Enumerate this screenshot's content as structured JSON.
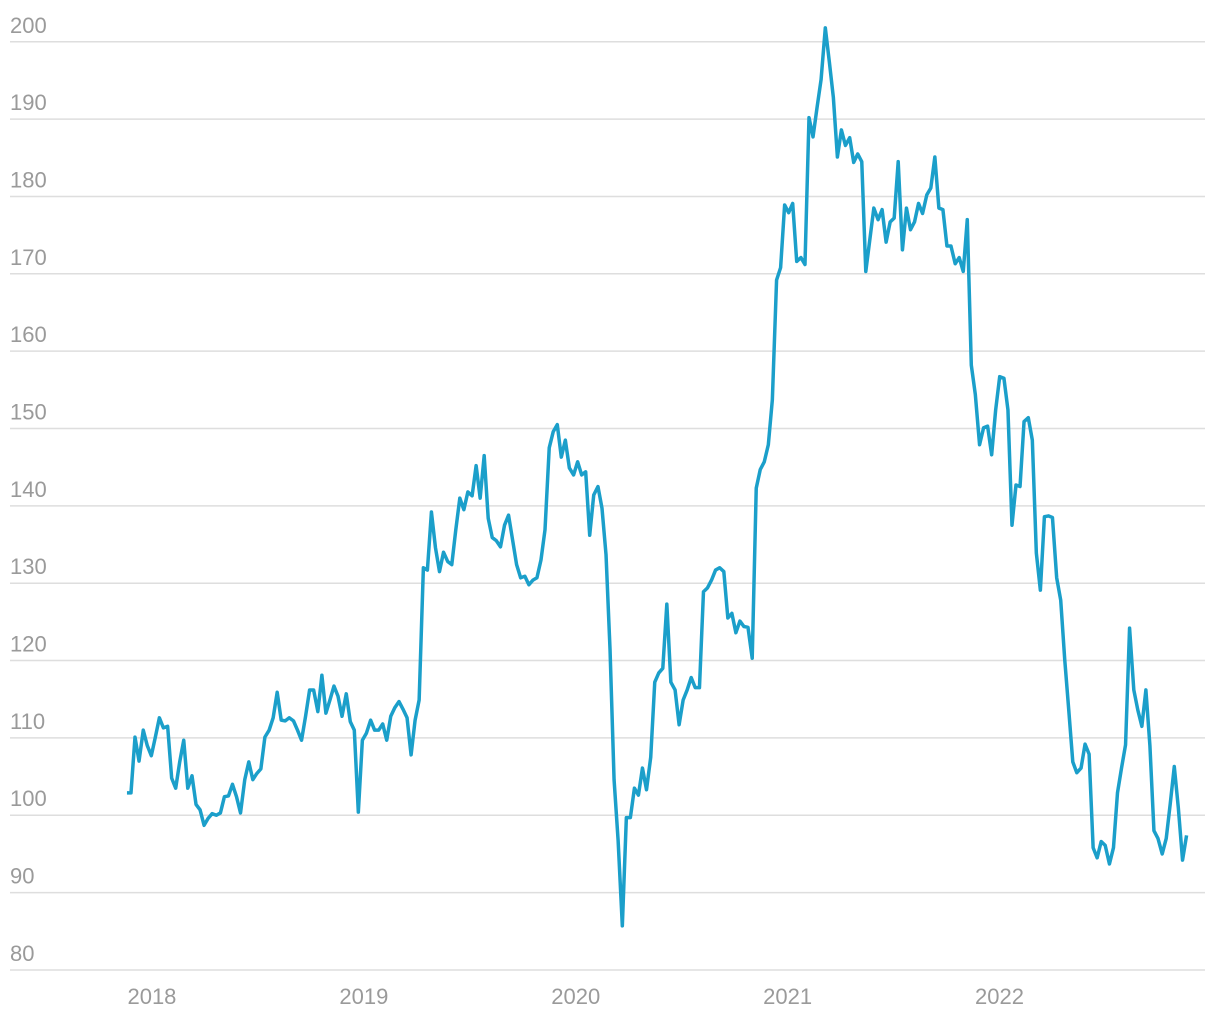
{
  "chart_data": {
    "type": "line",
    "x": [
      2017.882,
      2017.901,
      2017.92,
      2017.939,
      2017.959,
      2017.978,
      2017.997,
      2018.016,
      2018.035,
      2018.054,
      2018.074,
      2018.093,
      2018.112,
      2018.131,
      2018.15,
      2018.169,
      2018.189,
      2018.208,
      2018.227,
      2018.246,
      2018.265,
      2018.284,
      2018.304,
      2018.323,
      2018.342,
      2018.361,
      2018.38,
      2018.399,
      2018.418,
      2018.438,
      2018.457,
      2018.476,
      2018.495,
      2018.514,
      2018.533,
      2018.553,
      2018.572,
      2018.591,
      2018.61,
      2018.629,
      2018.648,
      2018.668,
      2018.687,
      2018.706,
      2018.725,
      2018.744,
      2018.763,
      2018.783,
      2018.802,
      2018.821,
      2018.84,
      2018.859,
      2018.878,
      2018.897,
      2018.917,
      2018.936,
      2018.955,
      2018.974,
      2018.993,
      2019.012,
      2019.032,
      2019.051,
      2019.07,
      2019.089,
      2019.108,
      2019.127,
      2019.146,
      2019.166,
      2019.185,
      2019.204,
      2019.223,
      2019.242,
      2019.261,
      2019.281,
      2019.3,
      2019.319,
      2019.338,
      2019.357,
      2019.376,
      2019.396,
      2019.415,
      2019.434,
      2019.453,
      2019.472,
      2019.491,
      2019.511,
      2019.53,
      2019.549,
      2019.568,
      2019.587,
      2019.606,
      2019.625,
      2019.645,
      2019.664,
      2019.683,
      2019.702,
      2019.721,
      2019.74,
      2019.76,
      2019.779,
      2019.798,
      2019.817,
      2019.836,
      2019.855,
      2019.875,
      2019.894,
      2019.913,
      2019.932,
      2019.951,
      2019.97,
      2019.99,
      2020.009,
      2020.028,
      2020.047,
      2020.066,
      2020.085,
      2020.105,
      2020.124,
      2020.143,
      2020.162,
      2020.181,
      2020.2,
      2020.22,
      2020.239,
      2020.258,
      2020.277,
      2020.296,
      2020.315,
      2020.334,
      2020.354,
      2020.373,
      2020.392,
      2020.411,
      2020.43,
      2020.449,
      2020.469,
      2020.488,
      2020.507,
      2020.526,
      2020.545,
      2020.564,
      2020.584,
      2020.603,
      2020.622,
      2020.641,
      2020.66,
      2020.679,
      2020.699,
      2020.718,
      2020.737,
      2020.756,
      2020.775,
      2020.794,
      2020.813,
      2020.833,
      2020.852,
      2020.871,
      2020.89,
      2020.909,
      2020.928,
      2020.948,
      2020.967,
      2020.986,
      2021.005,
      2021.024,
      2021.043,
      2021.063,
      2021.082,
      2021.101,
      2021.12,
      2021.139,
      2021.158,
      2021.178,
      2021.197,
      2021.216,
      2021.235,
      2021.254,
      2021.273,
      2021.293,
      2021.312,
      2021.331,
      2021.35,
      2021.369,
      2021.388,
      2021.407,
      2021.427,
      2021.446,
      2021.465,
      2021.484,
      2021.503,
      2021.522,
      2021.542,
      2021.561,
      2021.58,
      2021.599,
      2021.618,
      2021.637,
      2021.657,
      2021.676,
      2021.695,
      2021.714,
      2021.733,
      2021.752,
      2021.771,
      2021.791,
      2021.81,
      2021.829,
      2021.848,
      2021.867,
      2021.886,
      2021.906,
      2021.925,
      2021.944,
      2021.963,
      2021.982,
      2022.001,
      2022.021,
      2022.04,
      2022.059,
      2022.078,
      2022.097,
      2022.116,
      2022.136,
      2022.155,
      2022.174,
      2022.193,
      2022.212,
      2022.231,
      2022.25,
      2022.27,
      2022.289,
      2022.308,
      2022.327,
      2022.346,
      2022.365,
      2022.385,
      2022.404,
      2022.423,
      2022.442,
      2022.461,
      2022.48,
      2022.499,
      2022.519,
      2022.538,
      2022.557,
      2022.576,
      2022.595,
      2022.614,
      2022.634,
      2022.653,
      2022.672,
      2022.691,
      2022.71,
      2022.729,
      2022.748,
      2022.768,
      2022.787,
      2022.806,
      2022.825,
      2022.844,
      2022.864,
      2022.883
    ],
    "series": [
      {
        "color": "#1b9fca",
        "values": [
          102.9,
          102.9,
          110.1,
          107.0,
          111.0,
          109.0,
          107.7,
          110.1,
          112.6,
          111.3,
          111.5,
          104.8,
          103.5,
          106.9,
          109.7,
          103.5,
          105.1,
          101.4,
          100.7,
          98.7,
          99.6,
          100.2,
          100.0,
          100.3,
          102.4,
          102.5,
          104.0,
          102.4,
          100.3,
          104.6,
          106.9,
          104.6,
          105.4,
          106.0,
          110.1,
          111.0,
          112.6,
          115.9,
          112.3,
          112.2,
          112.6,
          112.2,
          111.0,
          109.7,
          112.8,
          116.2,
          116.2,
          113.4,
          118.1,
          113.2,
          114.9,
          116.7,
          115.4,
          112.8,
          115.7,
          112.1,
          111.0,
          100.4,
          109.7,
          110.6,
          112.3,
          111.0,
          111.0,
          111.8,
          109.7,
          112.8,
          113.9,
          114.7,
          113.7,
          112.6,
          107.8,
          112.3,
          114.9,
          132.0,
          131.7,
          139.2,
          134.6,
          131.5,
          134.0,
          132.8,
          132.4,
          136.9,
          141.0,
          139.5,
          141.8,
          141.3,
          145.2,
          141.0,
          146.5,
          138.4,
          135.9,
          135.5,
          134.7,
          137.5,
          138.8,
          135.6,
          132.4,
          130.7,
          130.9,
          129.8,
          130.4,
          130.7,
          133.0,
          136.9,
          147.5,
          149.6,
          150.5,
          146.3,
          148.5,
          144.9,
          144.0,
          145.7,
          144.0,
          144.4,
          136.2,
          141.4,
          142.5,
          139.7,
          133.7,
          121.4,
          104.6,
          96.8,
          85.7,
          99.7,
          99.7,
          103.5,
          102.6,
          106.1,
          103.3,
          107.5,
          117.2,
          118.4,
          119.0,
          127.3,
          117.2,
          116.2,
          111.7,
          114.9,
          116.2,
          117.8,
          116.5,
          116.5,
          128.9,
          129.4,
          130.4,
          131.7,
          132.0,
          131.5,
          125.5,
          126.1,
          123.6,
          125.1,
          124.4,
          124.3,
          120.3,
          142.3,
          144.7,
          145.7,
          147.9,
          153.7,
          169.2,
          170.8,
          178.9,
          177.9,
          179.1,
          171.6,
          172.1,
          171.2,
          190.2,
          187.7,
          191.5,
          195.1,
          201.8,
          197.4,
          192.8,
          185.1,
          188.6,
          186.6,
          187.6,
          184.4,
          185.5,
          184.5,
          170.3,
          174.4,
          178.5,
          177.0,
          178.3,
          174.1,
          176.7,
          177.2,
          184.5,
          173.1,
          178.5,
          175.7,
          176.7,
          179.1,
          177.8,
          180.2,
          181.1,
          185.1,
          178.5,
          178.3,
          173.6,
          173.6,
          171.3,
          172.1,
          170.3,
          177.0,
          158.2,
          154.4,
          147.9,
          150.1,
          150.3,
          146.6,
          152.4,
          156.7,
          156.5,
          152.4,
          137.5,
          142.7,
          142.5,
          150.9,
          151.4,
          148.5,
          133.9,
          129.1,
          138.6,
          138.7,
          138.5,
          130.7,
          127.8,
          120.1,
          113.6,
          106.9,
          105.5,
          106.1,
          109.2,
          107.9,
          95.8,
          94.5,
          96.6,
          96.1,
          93.7,
          95.8,
          102.9,
          106.1,
          109.1,
          124.2,
          116.2,
          113.6,
          111.5,
          116.2,
          109.0,
          98.0,
          97.0,
          95.0,
          97.0,
          101.5,
          106.3,
          101.0,
          94.2,
          97.4
        ]
      }
    ],
    "xlim": [
      2017.33,
      2022.97
    ],
    "xticks": [
      2018,
      2019,
      2020,
      2021,
      2022
    ],
    "ylim": [
      78.7,
      205.4
    ],
    "yticks": [
      80,
      90,
      100,
      110,
      120,
      130,
      140,
      150,
      160,
      170,
      180,
      190,
      200
    ],
    "grid": true
  }
}
